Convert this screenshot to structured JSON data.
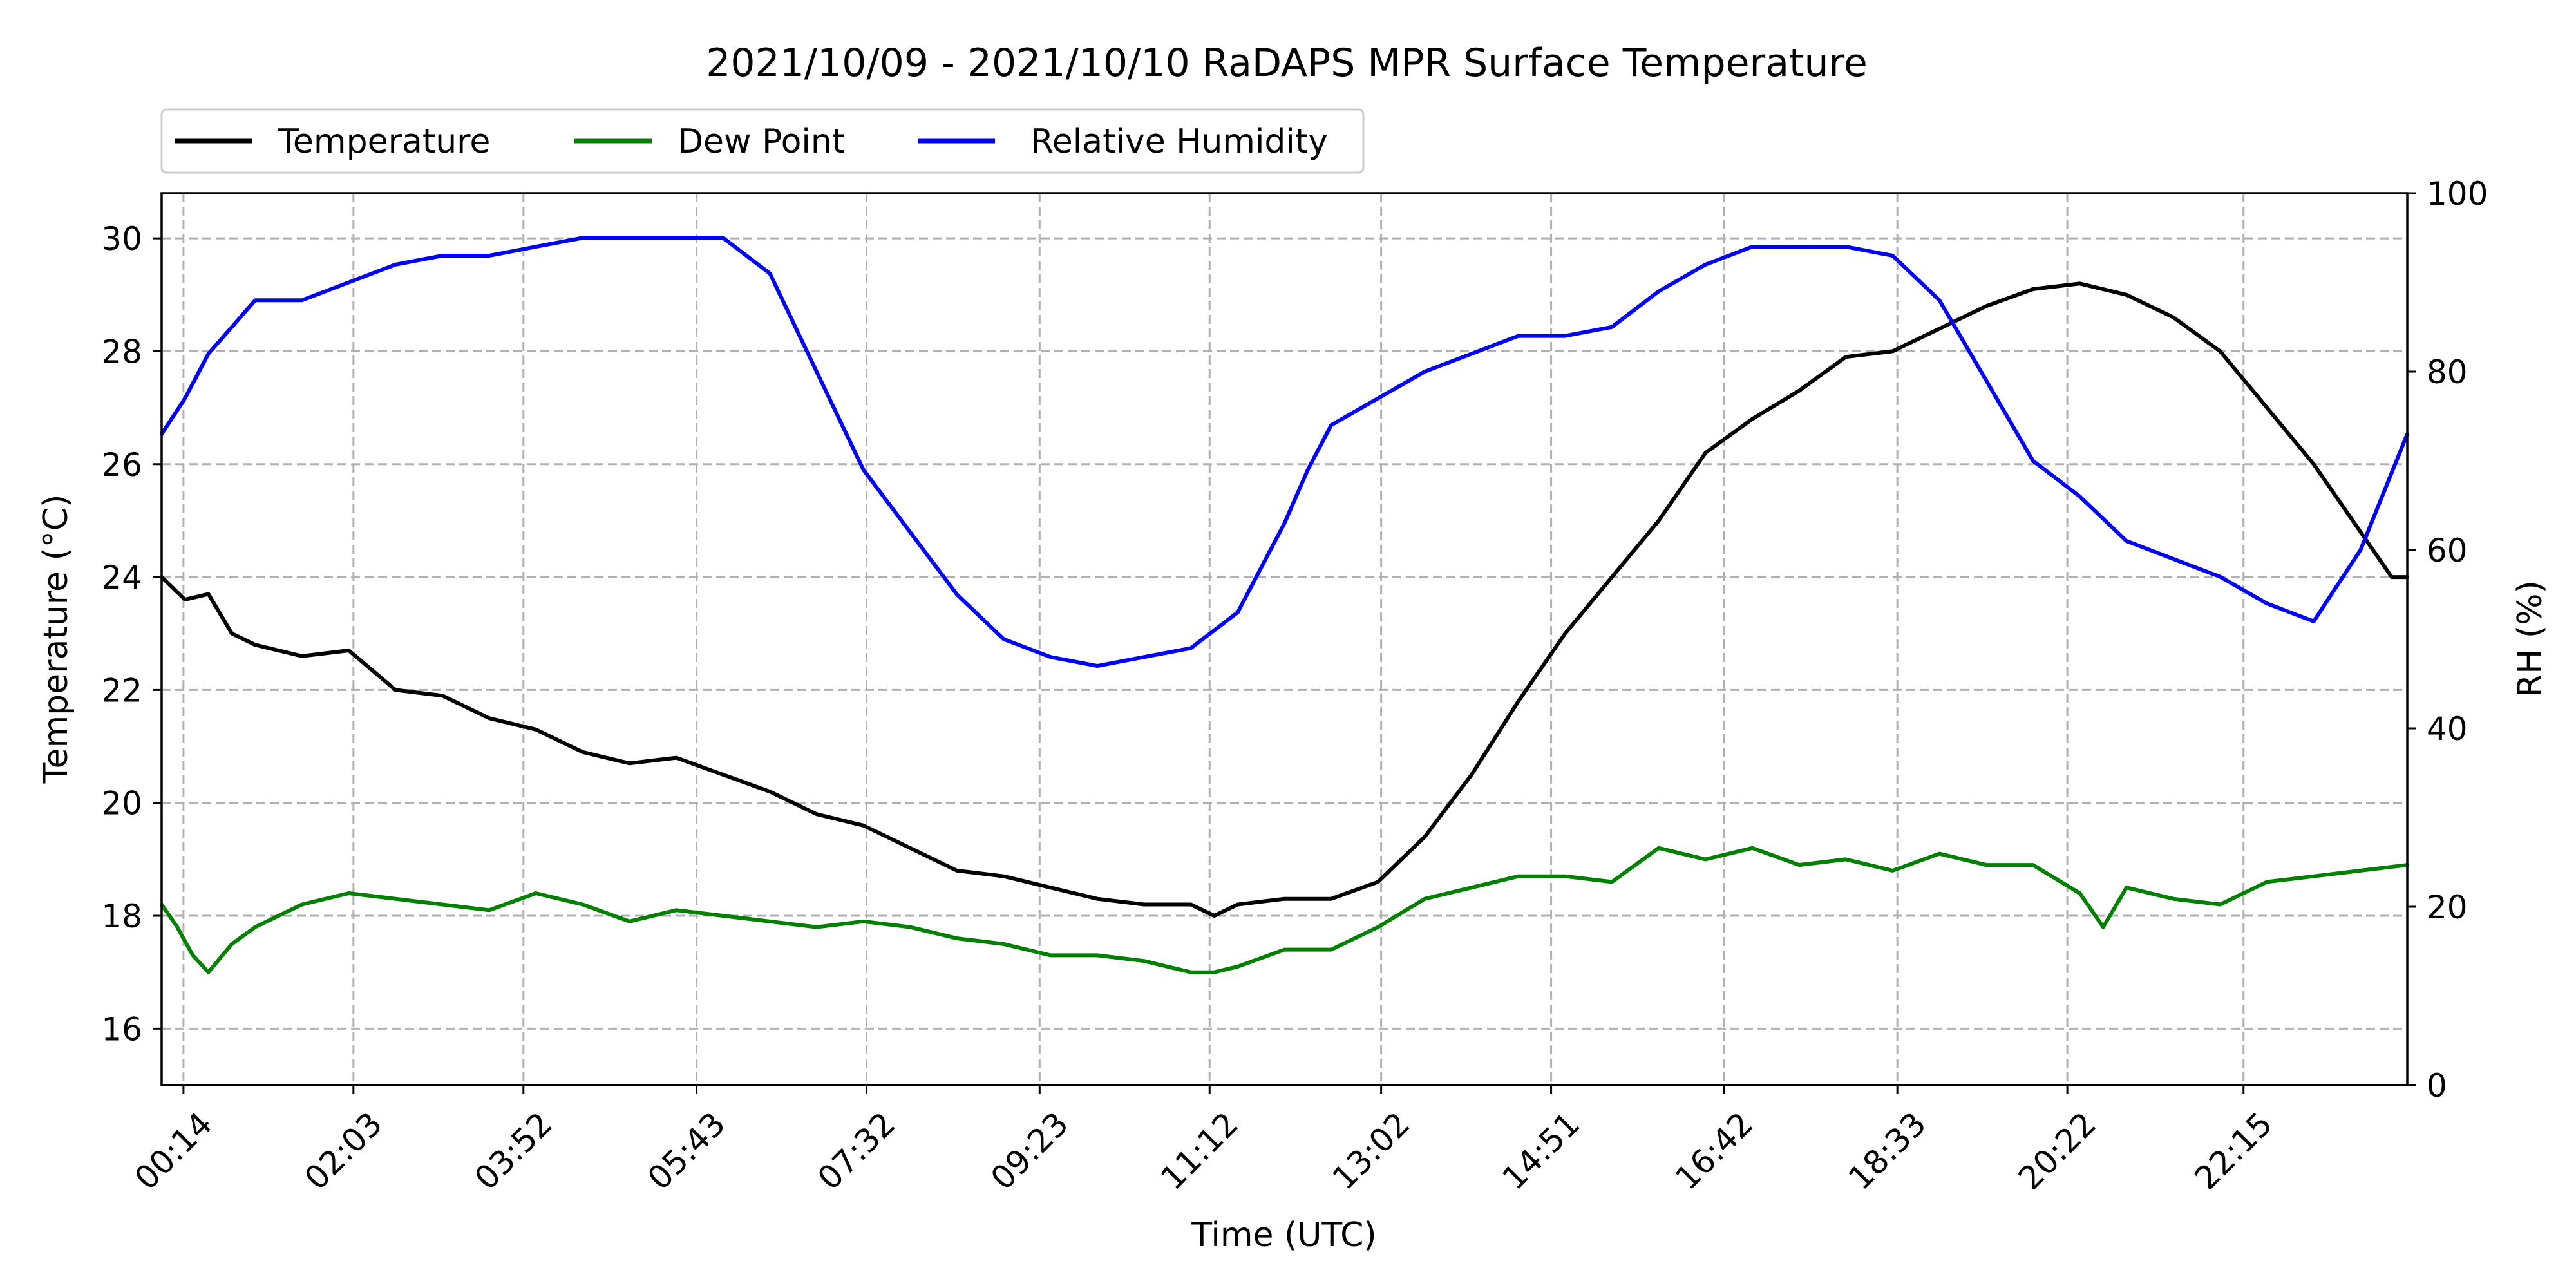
{
  "chart_data": {
    "type": "line",
    "title": "2021/10/09 - 2021/10/10 RaDAPS MPR Surface Temperature",
    "xlabel": "Time (UTC)",
    "ylabel": "Temperature ($^\\circ$C)",
    "ylabel_display": "Temperature (°C)",
    "y2label": "RH (%)",
    "xlim": [
      "00:00",
      "24:00"
    ],
    "ylim": [
      15,
      30.8
    ],
    "y2lim": [
      0,
      100
    ],
    "xticks": [
      "00:14",
      "02:03",
      "03:52",
      "05:43",
      "07:32",
      "09:23",
      "11:12",
      "13:02",
      "14:51",
      "16:42",
      "18:33",
      "20:22",
      "22:15"
    ],
    "yticks": [
      16,
      18,
      20,
      22,
      24,
      26,
      28,
      30
    ],
    "y2ticks": [
      0,
      20,
      40,
      60,
      80,
      100
    ],
    "grid": true,
    "grid_style": "dashed",
    "legend": {
      "placement": "top-left, above plot",
      "columns": 3
    },
    "series": [
      {
        "name": "Temperature",
        "axis": "left",
        "color": "#000000",
        "x": [
          "00:00",
          "00:15",
          "00:30",
          "00:45",
          "01:00",
          "01:30",
          "02:00",
          "02:30",
          "03:00",
          "03:30",
          "04:00",
          "04:30",
          "05:00",
          "05:30",
          "06:00",
          "06:30",
          "07:00",
          "07:30",
          "08:00",
          "08:30",
          "09:00",
          "09:30",
          "10:00",
          "10:30",
          "11:00",
          "11:15",
          "11:30",
          "12:00",
          "12:30",
          "13:00",
          "13:30",
          "14:00",
          "14:30",
          "15:00",
          "15:30",
          "16:00",
          "16:30",
          "17:00",
          "17:30",
          "18:00",
          "18:30",
          "19:00",
          "19:30",
          "20:00",
          "20:30",
          "21:00",
          "21:30",
          "22:00",
          "22:30",
          "23:00",
          "23:30",
          "23:50",
          "24:00"
        ],
        "values": [
          24.0,
          23.6,
          23.7,
          23.0,
          22.8,
          22.6,
          22.7,
          22.0,
          21.9,
          21.5,
          21.3,
          20.9,
          20.7,
          20.8,
          20.5,
          20.2,
          19.8,
          19.6,
          19.2,
          18.8,
          18.7,
          18.5,
          18.3,
          18.2,
          18.2,
          18.0,
          18.2,
          18.3,
          18.3,
          18.6,
          19.4,
          20.5,
          21.8,
          23.0,
          24.0,
          25.0,
          26.2,
          26.8,
          27.3,
          27.9,
          28.0,
          28.4,
          28.8,
          29.1,
          29.2,
          29.0,
          28.6,
          28.0,
          27.0,
          26.0,
          24.8,
          24.0,
          24.0
        ]
      },
      {
        "name": "Dew Point",
        "axis": "left",
        "color": "#008000",
        "x": [
          "00:00",
          "00:10",
          "00:20",
          "00:30",
          "00:45",
          "01:00",
          "01:30",
          "02:00",
          "02:30",
          "03:00",
          "03:30",
          "04:00",
          "04:30",
          "05:00",
          "05:30",
          "06:00",
          "06:30",
          "07:00",
          "07:30",
          "08:00",
          "08:30",
          "09:00",
          "09:30",
          "10:00",
          "10:30",
          "11:00",
          "11:15",
          "11:30",
          "12:00",
          "12:30",
          "13:00",
          "13:30",
          "14:00",
          "14:30",
          "15:00",
          "15:30",
          "16:00",
          "16:30",
          "17:00",
          "17:30",
          "18:00",
          "18:30",
          "19:00",
          "19:30",
          "20:00",
          "20:30",
          "20:45",
          "21:00",
          "21:30",
          "22:00",
          "22:30",
          "23:00",
          "23:30",
          "24:00"
        ],
        "values": [
          18.2,
          17.8,
          17.3,
          17.0,
          17.5,
          17.8,
          18.2,
          18.4,
          18.3,
          18.2,
          18.1,
          18.4,
          18.2,
          17.9,
          18.1,
          18.0,
          17.9,
          17.8,
          17.9,
          17.8,
          17.6,
          17.5,
          17.3,
          17.3,
          17.2,
          17.0,
          17.0,
          17.1,
          17.4,
          17.4,
          17.8,
          18.3,
          18.5,
          18.7,
          18.7,
          18.6,
          19.2,
          19.0,
          19.2,
          18.9,
          19.0,
          18.8,
          19.1,
          18.9,
          18.9,
          18.4,
          17.8,
          18.5,
          18.3,
          18.2,
          18.6,
          18.7,
          18.8,
          18.9
        ]
      },
      {
        "name": "Relative Humidity",
        "axis": "right",
        "color": "#0000ff",
        "x": [
          "00:00",
          "00:15",
          "00:30",
          "00:45",
          "01:00",
          "01:30",
          "02:00",
          "02:30",
          "03:00",
          "03:30",
          "04:00",
          "04:30",
          "05:00",
          "05:30",
          "06:00",
          "06:30",
          "07:00",
          "07:30",
          "08:00",
          "08:30",
          "09:00",
          "09:30",
          "10:00",
          "10:30",
          "11:00",
          "11:30",
          "12:00",
          "12:15",
          "12:30",
          "13:00",
          "13:30",
          "14:00",
          "14:30",
          "15:00",
          "15:30",
          "16:00",
          "16:30",
          "17:00",
          "17:30",
          "18:00",
          "18:30",
          "19:00",
          "19:30",
          "20:00",
          "20:30",
          "21:00",
          "21:30",
          "22:00",
          "22:30",
          "23:00",
          "23:30",
          "24:00"
        ],
        "values": [
          73,
          77,
          82,
          85,
          88,
          88,
          90,
          92,
          93,
          93,
          94,
          95,
          95,
          95,
          95,
          91,
          80,
          69,
          62,
          55,
          50,
          48,
          47,
          48,
          49,
          53,
          63,
          69,
          74,
          77,
          80,
          82,
          84,
          84,
          85,
          89,
          92,
          94,
          94,
          94,
          93,
          88,
          79,
          70,
          66,
          61,
          59,
          57,
          54,
          52,
          60,
          73
        ]
      }
    ]
  }
}
